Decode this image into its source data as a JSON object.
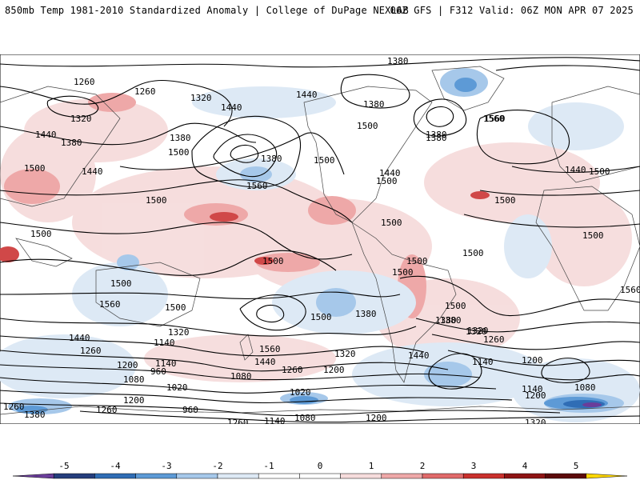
{
  "header": {
    "title": "850mb Temp 1981-2010 Standardized Anomaly | College of DuPage NEXLAB",
    "run_info": "06Z GFS | F312 Valid: 06Z MON APR 07 2025"
  },
  "contour_labels": [
    "1380",
    "1260",
    "1260",
    "1320",
    "1440",
    "1320",
    "1440",
    "1380",
    "1500",
    "1440",
    "1380",
    "1500",
    "1380",
    "1440",
    "1380",
    "1560",
    "1500",
    "1500",
    "1380",
    "1500",
    "1560",
    "1380",
    "1560",
    "1500",
    "1440",
    "1500",
    "1500",
    "1440",
    "1500",
    "1500",
    "1500",
    "1500",
    "1500",
    "1500",
    "1500",
    "1560",
    "1500",
    "1500",
    "1500",
    "1560",
    "1500",
    "1380",
    "1320",
    "1440",
    "1380",
    "1320",
    "1560",
    "1440",
    "1320",
    "1260",
    "1140",
    "1200",
    "1080",
    "1260",
    "1200",
    "1140",
    "1080",
    "960",
    "1020",
    "1200",
    "1260",
    "1020",
    "960",
    "1140",
    "1080",
    "1200",
    "1260",
    "1380",
    "1260",
    "1140",
    "1080",
    "1200",
    "1140",
    "1320",
    "1440",
    "1380",
    "1260",
    "1200",
    "1320"
  ],
  "colorbar": {
    "ticks": [
      "-5",
      "-4",
      "-3",
      "-2",
      "-1",
      "0",
      "1",
      "2",
      "3",
      "4",
      "5"
    ],
    "colors": [
      "#6a3d9a",
      "#253d7c",
      "#2f6db5",
      "#5d9ad6",
      "#a6c8ea",
      "#dde9f5",
      "#ffffff",
      "#ffffff",
      "#f6dcdc",
      "#eea8a8",
      "#e06a6a",
      "#c9302c",
      "#8e1414",
      "#5c0a0a",
      "#ffd700"
    ]
  },
  "colors": {
    "positive_anomaly": "#e06a6a",
    "negative_anomaly": "#5d9ad6",
    "contour_line": "#000000",
    "coastline": "#444444"
  }
}
